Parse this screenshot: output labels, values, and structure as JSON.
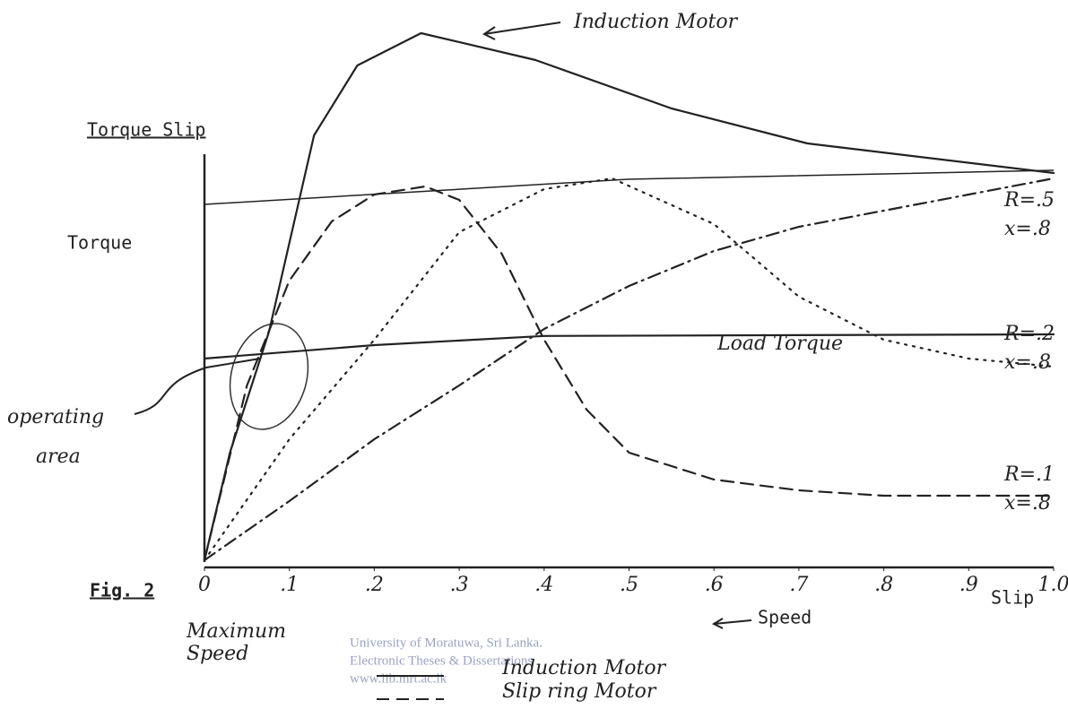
{
  "chart_data": {
    "type": "line",
    "title": "Torque Slip",
    "figure_label": "Fig. 2",
    "y_label": "Torque",
    "x_label": "Slip",
    "direction_label": "Speed",
    "origin_label": [
      "Maximum",
      "Speed"
    ],
    "operating_label": [
      "operating",
      "area"
    ],
    "xlim": [
      0,
      1.0
    ],
    "ylim": [
      0,
      100
    ],
    "xticks": [
      0,
      {
        "value": 0.1,
        "label": ".1"
      },
      {
        "value": 0.2,
        "label": ".2"
      },
      {
        "value": 0.3,
        "label": ".3"
      },
      {
        "value": 0.4,
        "label": ".4"
      },
      {
        "value": 0.5,
        "label": ".5"
      },
      {
        "value": 0.6,
        "label": ".6"
      },
      {
        "value": 0.7,
        "label": ".7"
      },
      {
        "value": 0.8,
        "label": ".8"
      },
      {
        "value": 0.9,
        "label": ".9"
      },
      {
        "value": 1.0,
        "label": "1.0"
      }
    ],
    "series": [
      {
        "name": "Induction Motor",
        "dash": "solid",
        "color": "#222222",
        "x": [
          0,
          0.03,
          0.076,
          0.129,
          0.18,
          0.255,
          0.39,
          0.55,
          0.71,
          1.0
        ],
        "values": [
          0,
          20,
          42.5,
          79,
          92,
          98,
          93,
          84,
          77.5,
          72
        ]
      },
      {
        "name": "R=.5",
        "reactance": "x=.8",
        "dash": "dashdot",
        "color": "#222222",
        "x": [
          0,
          0.1,
          0.2,
          0.3,
          0.4,
          0.5,
          0.6,
          0.7,
          0.8,
          0.9,
          1.0
        ],
        "values": [
          0,
          11,
          22.5,
          32.5,
          43,
          51,
          57.5,
          62,
          65,
          68,
          71
        ]
      },
      {
        "name": "R=.2",
        "reactance": "x=.8",
        "dash": "dotted",
        "color": "#222222",
        "x": [
          0,
          0.1,
          0.2,
          0.3,
          0.4,
          0.48,
          0.6,
          0.7,
          0.8,
          0.9,
          1.0
        ],
        "values": [
          0,
          22.5,
          41,
          61,
          69,
          71,
          62.5,
          49,
          41,
          37.5,
          36
        ]
      },
      {
        "name": "R=.1",
        "reactance": "x=.8",
        "dash": "dashed",
        "color": "#222222",
        "x": [
          0,
          0.05,
          0.1,
          0.15,
          0.2,
          0.26,
          0.3,
          0.35,
          0.4,
          0.45,
          0.5,
          0.6,
          0.7,
          0.8,
          1.0
        ],
        "values": [
          0,
          32.5,
          52,
          63,
          68,
          69.5,
          67,
          57,
          41,
          28,
          20,
          15,
          13,
          12,
          12
        ]
      },
      {
        "name": "Load Torque",
        "dash": "solid",
        "color": "#222222",
        "x": [
          0,
          0.2,
          0.4,
          1.0
        ],
        "values": [
          37.5,
          40,
          41.7,
          42
        ]
      }
    ],
    "legend": [
      {
        "label": "Induction Motor",
        "dash": "solid"
      },
      {
        "label": "Slip ring Motor",
        "dash": "dashed"
      }
    ],
    "watermark": [
      "University of Moratuwa, Sri Lanka.",
      "Electronic Theses & Dissertations",
      "www.lib.mrt.ac.lk"
    ]
  }
}
